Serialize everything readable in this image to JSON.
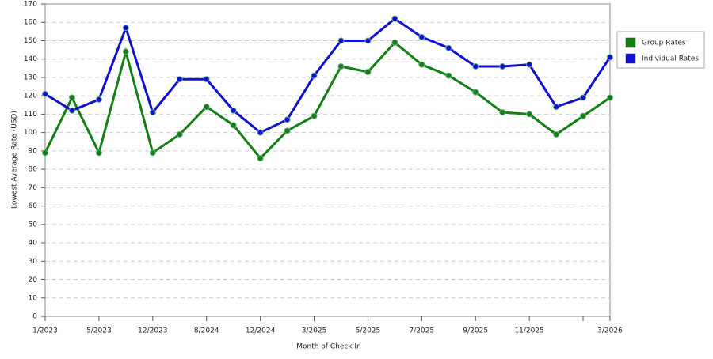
{
  "chart_data": {
    "type": "line",
    "x_label": "Month of Check In",
    "y_label": "Lowest Average Rate (USD)",
    "categories": [
      "1/2023",
      null,
      "5/2023",
      null,
      "12/2023",
      null,
      "8/2024",
      null,
      "12/2024",
      null,
      "3/2025",
      null,
      "5/2025",
      null,
      "7/2025",
      null,
      "9/2025",
      null,
      "11/2025",
      null,
      null,
      "3/2026"
    ],
    "series": [
      {
        "name": "Group Rates",
        "color": "#138013",
        "values": [
          89,
          119,
          89,
          144,
          89,
          99,
          114,
          104,
          86,
          101,
          109,
          136,
          133,
          149,
          137,
          131,
          122,
          111,
          110,
          99,
          109,
          119
        ]
      },
      {
        "name": "Individual Rates",
        "color": "#1010d0",
        "values": [
          121,
          112,
          118,
          157,
          111,
          129,
          129,
          112,
          100,
          107,
          131,
          150,
          150,
          162,
          152,
          146,
          136,
          136,
          137,
          114,
          119,
          141
        ]
      }
    ],
    "ylim": [
      0,
      170
    ],
    "yticks": [
      0,
      10,
      20,
      30,
      40,
      50,
      60,
      70,
      80,
      90,
      100,
      110,
      120,
      130,
      140,
      150,
      160,
      170
    ],
    "grid": true,
    "legend": "right"
  }
}
